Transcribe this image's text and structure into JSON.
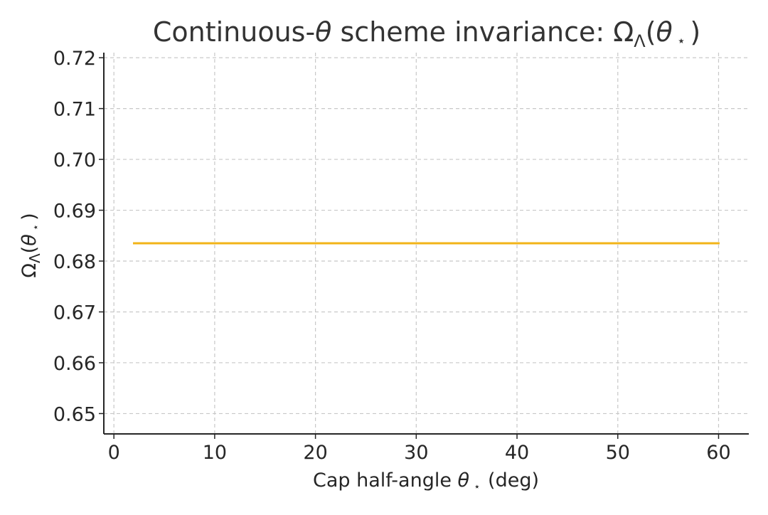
{
  "chart_data": {
    "type": "line",
    "title": "Continuous-θ scheme invariance: Ω_Λ(θ⋆)",
    "title_parts": {
      "prefix": "Continuous-",
      "theta": "θ",
      "middle": " scheme invariance: Ω",
      "sub": "Λ",
      "open": "(",
      "theta2": "θ",
      "star": "⋆",
      "close": ")"
    },
    "xlabel": "Cap half-angle θ⋆ (deg)",
    "xlabel_parts": {
      "prefix": "Cap half-angle ",
      "theta": "θ",
      "star": "⋆",
      "suffix": " (deg)"
    },
    "ylabel": "Ω_Λ(θ⋆)",
    "ylabel_parts": {
      "omega": "Ω",
      "sub": "Λ",
      "open": "(",
      "theta": "θ",
      "star": "⋆",
      "close": ")"
    },
    "xlim": [
      -1,
      63
    ],
    "ylim": [
      0.646,
      0.721
    ],
    "xticks": [
      0,
      10,
      20,
      30,
      40,
      50,
      60
    ],
    "xtick_labels": [
      "0",
      "10",
      "20",
      "30",
      "40",
      "50",
      "60"
    ],
    "yticks": [
      0.65,
      0.66,
      0.67,
      0.68,
      0.69,
      0.7,
      0.71,
      0.72
    ],
    "ytick_labels": [
      "0.65",
      "0.66",
      "0.67",
      "0.68",
      "0.69",
      "0.70",
      "0.71",
      "0.72"
    ],
    "grid": true,
    "series": [
      {
        "color": "#f2b418",
        "x": [
          2,
          60
        ],
        "y": [
          0.6835,
          0.6835
        ]
      }
    ]
  }
}
